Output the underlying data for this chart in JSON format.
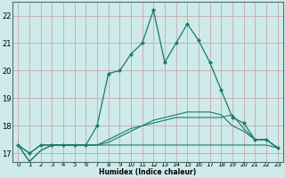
{
  "xlabel": "Humidex (Indice chaleur)",
  "bg_color": "#ceeaea",
  "grid_color": "#c8a8a8",
  "line_color": "#1a7a6a",
  "xlim": [
    -0.5,
    23.5
  ],
  "ylim": [
    16.7,
    22.5
  ],
  "yticks": [
    17,
    18,
    19,
    20,
    21,
    22
  ],
  "xticks": [
    0,
    1,
    2,
    3,
    4,
    5,
    6,
    7,
    8,
    9,
    10,
    11,
    12,
    13,
    14,
    15,
    16,
    17,
    18,
    19,
    20,
    21,
    22,
    23
  ],
  "line_main_x": [
    0,
    1,
    2,
    3,
    4,
    5,
    6,
    7,
    8,
    9,
    10,
    11,
    12,
    13,
    14,
    15,
    16,
    17,
    18,
    19,
    20,
    21,
    22,
    23
  ],
  "line_main_y": [
    17.3,
    17.0,
    17.3,
    17.3,
    17.3,
    17.3,
    17.3,
    18.0,
    19.9,
    20.0,
    20.6,
    21.0,
    22.2,
    20.3,
    21.0,
    21.7,
    21.1,
    20.3,
    19.3,
    18.3,
    18.1,
    17.5,
    17.5,
    17.2
  ],
  "line_flat1_x": [
    0,
    1,
    2,
    3,
    4,
    5,
    6,
    7,
    8,
    9,
    10,
    11,
    12,
    13,
    14,
    15,
    16,
    17,
    18,
    19,
    20,
    21,
    22,
    23
  ],
  "line_flat1_y": [
    17.3,
    17.0,
    17.3,
    17.3,
    17.3,
    17.3,
    17.3,
    17.3,
    17.3,
    17.3,
    17.3,
    17.3,
    17.3,
    17.3,
    17.3,
    17.3,
    17.3,
    17.3,
    17.3,
    17.3,
    17.3,
    17.3,
    17.3,
    17.2
  ],
  "line_flat2_x": [
    0,
    1,
    2,
    3,
    4,
    5,
    6,
    7,
    8,
    9,
    10,
    11,
    12,
    13,
    14,
    15,
    16,
    17,
    18,
    19,
    20,
    21,
    22,
    23
  ],
  "line_flat2_y": [
    17.3,
    16.7,
    17.1,
    17.3,
    17.3,
    17.3,
    17.3,
    17.3,
    17.5,
    17.7,
    17.9,
    18.0,
    18.1,
    18.2,
    18.3,
    18.3,
    18.3,
    18.3,
    18.3,
    18.4,
    17.9,
    17.5,
    17.5,
    17.2
  ],
  "line_flat3_x": [
    0,
    1,
    2,
    3,
    4,
    5,
    6,
    7,
    8,
    9,
    10,
    11,
    12,
    13,
    14,
    15,
    16,
    17,
    18,
    19,
    20,
    21,
    22,
    23
  ],
  "line_flat3_y": [
    17.3,
    16.7,
    17.1,
    17.3,
    17.3,
    17.3,
    17.3,
    17.3,
    17.4,
    17.6,
    17.8,
    18.0,
    18.2,
    18.3,
    18.4,
    18.5,
    18.5,
    18.5,
    18.4,
    18.0,
    17.8,
    17.5,
    17.5,
    17.2
  ]
}
